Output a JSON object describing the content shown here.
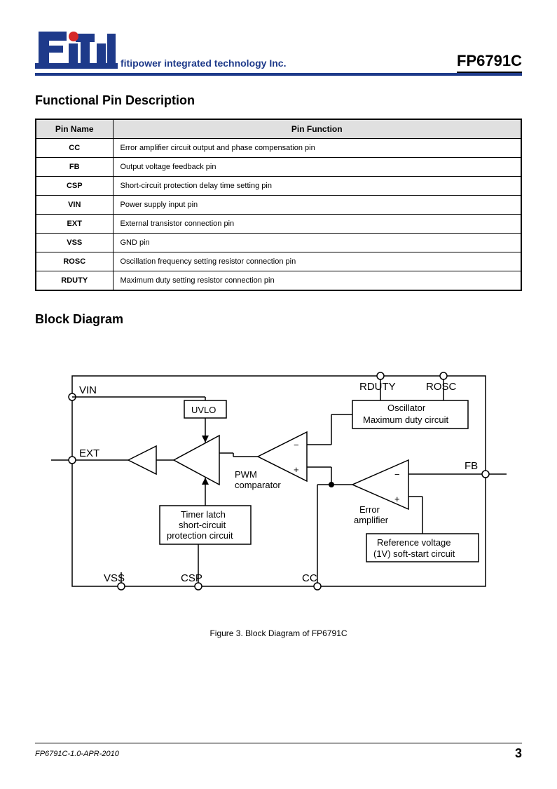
{
  "header": {
    "company_name": "fitipower integrated technology Inc.",
    "part_number": "FP6791C"
  },
  "logo": {
    "primary_color": "#1e3a8a",
    "accent_color": "#d62828"
  },
  "section1": {
    "title": "Functional Pin Description",
    "table": {
      "columns": [
        "Pin Name",
        "Pin Function"
      ],
      "rows": [
        [
          "CC",
          "Error amplifier circuit output and phase compensation pin"
        ],
        [
          "FB",
          "Output voltage feedback pin"
        ],
        [
          "CSP",
          "Short-circuit protection delay time setting pin"
        ],
        [
          "VIN",
          "Power supply input pin"
        ],
        [
          "EXT",
          "External transistor connection pin"
        ],
        [
          "VSS",
          "GND pin"
        ],
        [
          "ROSC",
          "Oscillation frequency setting resistor connection pin"
        ],
        [
          "RDUTY",
          "Maximum duty setting resistor connection pin"
        ]
      ]
    }
  },
  "section2": {
    "title": "Block Diagram",
    "caption": "Figure 3. Block Diagram of FP6791C"
  },
  "diagram": {
    "type": "block-diagram",
    "stroke_color": "#000000",
    "fill_color": "#ffffff",
    "pins": {
      "VIN": "VIN",
      "EXT": "EXT",
      "VSS": "VSS",
      "CSP": "CSP",
      "CC": "CC",
      "FB": "FB",
      "RDUTY": "RDUTY",
      "ROSC": "ROSC"
    },
    "blocks": {
      "uvlo": "UVLO",
      "pwm": "PWM\ncomparator",
      "timer": "Timer latch\nshort-circuit\nprotection circuit",
      "oscillator": "Oscillator\nMaximum duty circuit",
      "error_amp": "Error\namplifier",
      "ref_voltage": "Reference voltage\n(1V) soft-start circuit"
    }
  },
  "footer": {
    "doc_id": "FP6791C-1.0-APR-2010",
    "page_number": "3"
  }
}
